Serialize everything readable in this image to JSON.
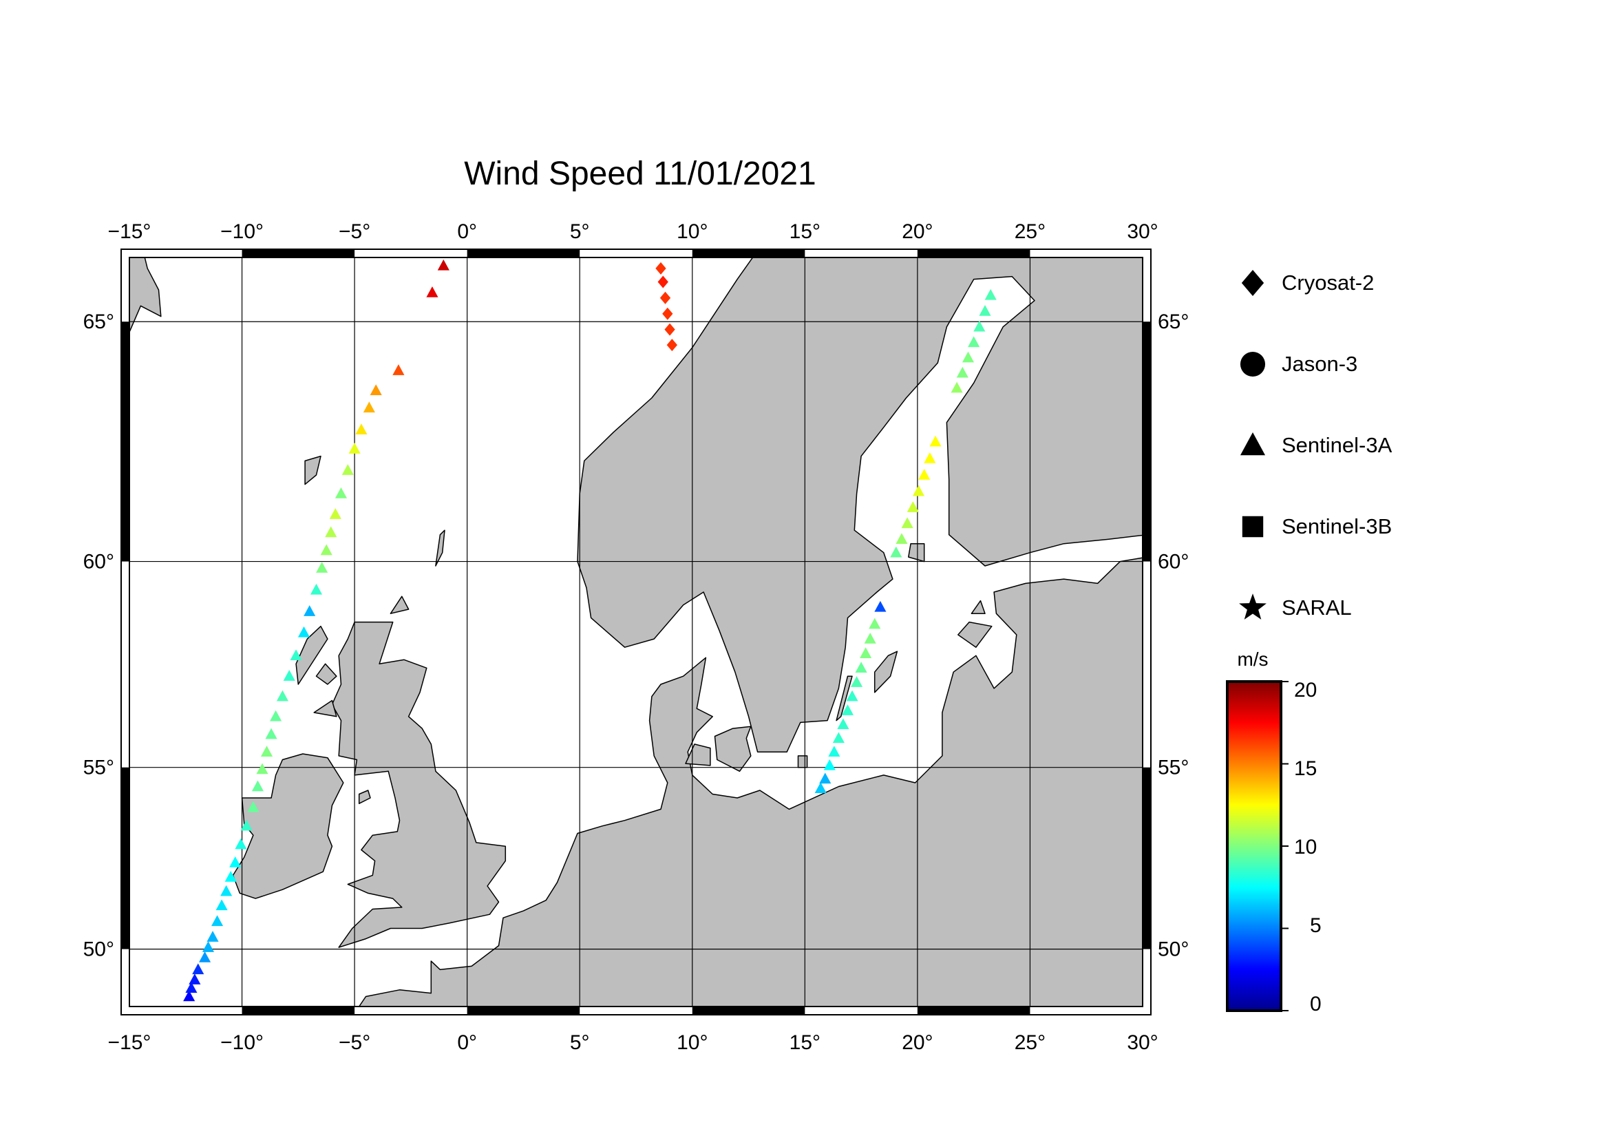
{
  "title": "Wind Speed 11/01/2021",
  "map": {
    "lon_range": [
      -15,
      30
    ],
    "lat_range": [
      48.3,
      66.2
    ],
    "grid": true,
    "land_color": "#bebebe",
    "sea_color": "#ffffff",
    "lon_ticks": [
      {
        "value": -15,
        "label": "−15°"
      },
      {
        "value": -10,
        "label": "−10°"
      },
      {
        "value": -5,
        "label": "−5°"
      },
      {
        "value": 0,
        "label": "0°"
      },
      {
        "value": 5,
        "label": "5°"
      },
      {
        "value": 10,
        "label": "10°"
      },
      {
        "value": 15,
        "label": "15°"
      },
      {
        "value": 20,
        "label": "20°"
      },
      {
        "value": 25,
        "label": "25°"
      },
      {
        "value": 30,
        "label": "30°"
      }
    ],
    "lat_ticks": [
      {
        "value": 50,
        "label": "50°"
      },
      {
        "value": 55,
        "label": "55°"
      },
      {
        "value": 60,
        "label": "60°"
      },
      {
        "value": 65,
        "label": "65°"
      }
    ]
  },
  "legend": {
    "items": [
      {
        "label": "Cryosat-2",
        "symbol": "diamond"
      },
      {
        "label": "Jason-3",
        "symbol": "circle"
      },
      {
        "label": "Sentinel-3A",
        "symbol": "triangle"
      },
      {
        "label": "Sentinel-3B",
        "symbol": "square"
      },
      {
        "label": "SARAL",
        "symbol": "star"
      }
    ]
  },
  "colorbar": {
    "unit": "m/s",
    "range": [
      0,
      20
    ],
    "colormap": [
      "#00008f",
      "#0000ff",
      "#0080ff",
      "#00ffff",
      "#80ff80",
      "#ffff00",
      "#ff8000",
      "#ff0000",
      "#800000"
    ],
    "ticks": [
      {
        "value": 20,
        "label": "20"
      },
      {
        "value": 15,
        "label": "15"
      },
      {
        "value": 10,
        "label": "10"
      },
      {
        "value": 5,
        "label": "5"
      },
      {
        "value": 0,
        "label": "0"
      }
    ]
  },
  "tracks": [
    {
      "satellite": "Sentinel-3A",
      "symbol": "triangle",
      "points": [
        {
          "lon": -12.35,
          "lat": 48.6,
          "speed": 2.5
        },
        {
          "lon": -12.25,
          "lat": 48.85,
          "speed": 3.0
        },
        {
          "lon": -12.1,
          "lat": 49.1,
          "speed": 3.0
        },
        {
          "lon": -11.95,
          "lat": 49.4,
          "speed": 3.5
        },
        {
          "lon": -11.65,
          "lat": 49.75,
          "speed": 5.5
        },
        {
          "lon": -11.5,
          "lat": 50.05,
          "speed": 6.0
        },
        {
          "lon": -11.3,
          "lat": 50.35,
          "speed": 6.0
        },
        {
          "lon": -11.1,
          "lat": 50.8,
          "speed": 6.5
        },
        {
          "lon": -10.9,
          "lat": 51.25,
          "speed": 7.0
        },
        {
          "lon": -10.7,
          "lat": 51.65,
          "speed": 7.0
        },
        {
          "lon": -10.5,
          "lat": 52.05,
          "speed": 7.5
        },
        {
          "lon": -10.3,
          "lat": 52.45,
          "speed": 7.5
        },
        {
          "lon": -10.05,
          "lat": 52.95,
          "speed": 8.0
        },
        {
          "lon": -9.8,
          "lat": 53.45,
          "speed": 8.5
        },
        {
          "lon": -9.5,
          "lat": 53.95,
          "speed": 9.5
        },
        {
          "lon": -9.3,
          "lat": 54.5,
          "speed": 9.5
        },
        {
          "lon": -9.1,
          "lat": 54.95,
          "speed": 10.0
        },
        {
          "lon": -8.9,
          "lat": 55.4,
          "speed": 10.0
        },
        {
          "lon": -8.7,
          "lat": 55.85,
          "speed": 9.5
        },
        {
          "lon": -8.5,
          "lat": 56.3,
          "speed": 9.5
        },
        {
          "lon": -8.2,
          "lat": 56.8,
          "speed": 9.0
        },
        {
          "lon": -7.9,
          "lat": 57.3,
          "speed": 8.5
        },
        {
          "lon": -7.6,
          "lat": 57.8,
          "speed": 8.5
        },
        {
          "lon": -7.25,
          "lat": 58.35,
          "speed": 7.0
        },
        {
          "lon": -7.0,
          "lat": 58.85,
          "speed": 6.0
        },
        {
          "lon": -6.7,
          "lat": 59.35,
          "speed": 8.5
        },
        {
          "lon": -6.45,
          "lat": 59.85,
          "speed": 10.0
        },
        {
          "lon": -6.25,
          "lat": 60.25,
          "speed": 10.5
        },
        {
          "lon": -6.05,
          "lat": 60.65,
          "speed": 11.0
        },
        {
          "lon": -5.85,
          "lat": 61.05,
          "speed": 11.5
        },
        {
          "lon": -5.6,
          "lat": 61.5,
          "speed": 10.0
        },
        {
          "lon": -5.3,
          "lat": 62.0,
          "speed": 11.0
        },
        {
          "lon": -5.0,
          "lat": 62.45,
          "speed": 12.0
        },
        {
          "lon": -4.7,
          "lat": 62.85,
          "speed": 13.0
        },
        {
          "lon": -4.35,
          "lat": 63.3,
          "speed": 14.0
        },
        {
          "lon": -4.05,
          "lat": 63.65,
          "speed": 14.5
        },
        {
          "lon": -3.05,
          "lat": 64.05,
          "speed": 16.0
        },
        {
          "lon": -1.55,
          "lat": 65.55,
          "speed": 18.0
        },
        {
          "lon": -1.05,
          "lat": 66.05,
          "speed": 18.5
        }
      ]
    },
    {
      "satellite": "Cryosat-2",
      "symbol": "diamond",
      "points": [
        {
          "lon": 8.6,
          "lat": 66.0,
          "speed": 16.5
        },
        {
          "lon": 8.7,
          "lat": 65.75,
          "speed": 17.0
        },
        {
          "lon": 8.8,
          "lat": 65.45,
          "speed": 16.5
        },
        {
          "lon": 8.9,
          "lat": 65.15,
          "speed": 16.5
        },
        {
          "lon": 9.0,
          "lat": 64.85,
          "speed": 16.5
        },
        {
          "lon": 9.1,
          "lat": 64.55,
          "speed": 16.5
        }
      ]
    },
    {
      "satellite": "Sentinel-3A",
      "symbol": "triangle",
      "points": [
        {
          "lon": 15.7,
          "lat": 54.45,
          "speed": 6.5
        },
        {
          "lon": 15.9,
          "lat": 54.7,
          "speed": 6.0
        },
        {
          "lon": 16.1,
          "lat": 55.05,
          "speed": 7.5
        },
        {
          "lon": 16.3,
          "lat": 55.4,
          "speed": 8.0
        },
        {
          "lon": 16.5,
          "lat": 55.75,
          "speed": 8.5
        },
        {
          "lon": 16.7,
          "lat": 56.1,
          "speed": 8.5
        },
        {
          "lon": 16.9,
          "lat": 56.45,
          "speed": 8.5
        },
        {
          "lon": 17.1,
          "lat": 56.8,
          "speed": 8.5
        },
        {
          "lon": 17.3,
          "lat": 57.15,
          "speed": 9.0
        },
        {
          "lon": 17.5,
          "lat": 57.5,
          "speed": 9.5
        },
        {
          "lon": 17.7,
          "lat": 57.85,
          "speed": 10.0
        },
        {
          "lon": 17.9,
          "lat": 58.2,
          "speed": 10.0
        },
        {
          "lon": 18.1,
          "lat": 58.55,
          "speed": 10.0
        },
        {
          "lon": 18.35,
          "lat": 58.95,
          "speed": 4.0
        },
        {
          "lon": 19.05,
          "lat": 60.2,
          "speed": 9.5
        },
        {
          "lon": 19.3,
          "lat": 60.5,
          "speed": 10.5
        },
        {
          "lon": 19.55,
          "lat": 60.85,
          "speed": 11.0
        },
        {
          "lon": 19.8,
          "lat": 61.2,
          "speed": 11.5
        },
        {
          "lon": 20.05,
          "lat": 61.55,
          "speed": 12.0
        },
        {
          "lon": 20.3,
          "lat": 61.9,
          "speed": 12.5
        },
        {
          "lon": 20.55,
          "lat": 62.25,
          "speed": 12.5
        },
        {
          "lon": 20.8,
          "lat": 62.6,
          "speed": 12.5
        },
        {
          "lon": 21.75,
          "lat": 63.7,
          "speed": 10.5
        },
        {
          "lon": 22.0,
          "lat": 64.0,
          "speed": 10.0
        },
        {
          "lon": 22.25,
          "lat": 64.3,
          "speed": 10.0
        },
        {
          "lon": 22.5,
          "lat": 64.6,
          "speed": 9.5
        },
        {
          "lon": 22.75,
          "lat": 64.9,
          "speed": 9.0
        },
        {
          "lon": 23.0,
          "lat": 65.2,
          "speed": 9.0
        },
        {
          "lon": 23.25,
          "lat": 65.5,
          "speed": 9.0
        }
      ]
    }
  ]
}
